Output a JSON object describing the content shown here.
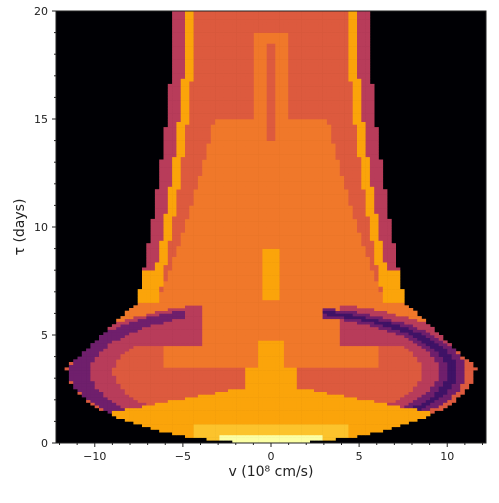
{
  "chart_data": {
    "type": "heatmap",
    "title": "",
    "xlabel": "v (10⁸ cm/s)",
    "ylabel": "τ (days)",
    "xlim": [
      -12.2,
      12.2
    ],
    "ylim": [
      0,
      20
    ],
    "x_ticks": [
      -10,
      -5,
      0,
      5,
      10
    ],
    "x_tick_labels": [
      "−10",
      "−5",
      "0",
      "5",
      "10"
    ],
    "y_ticks": [
      0,
      5,
      10,
      15,
      20
    ],
    "y_tick_labels": [
      "0",
      "5",
      "10",
      "15",
      "20"
    ],
    "background_color": "#000004",
    "colormap": "inferno",
    "colorbar": false,
    "grid": false,
    "palette": {
      "pale": "#fcffa4",
      "yellow": "#fcc32c",
      "gold": "#fba40a",
      "orange": "#f0782a",
      "red_orange": "#dd5a3e",
      "magenta": "#b83c5a",
      "purple": "#6f1f6c",
      "deep_purple": "#3f1266"
    },
    "regions": [
      {
        "name": "outer-envelope",
        "level": "red_orange"
      },
      {
        "name": "inner-cone",
        "level": "orange"
      },
      {
        "name": "flank-edges",
        "level": "magenta"
      },
      {
        "name": "disk-band",
        "level": "red_orange"
      },
      {
        "name": "disk-arcs",
        "level": "deep_purple"
      },
      {
        "name": "base-band",
        "level": "gold"
      },
      {
        "name": "base-core",
        "level": "yellow"
      },
      {
        "name": "center-peak",
        "level": "pale"
      }
    ]
  }
}
